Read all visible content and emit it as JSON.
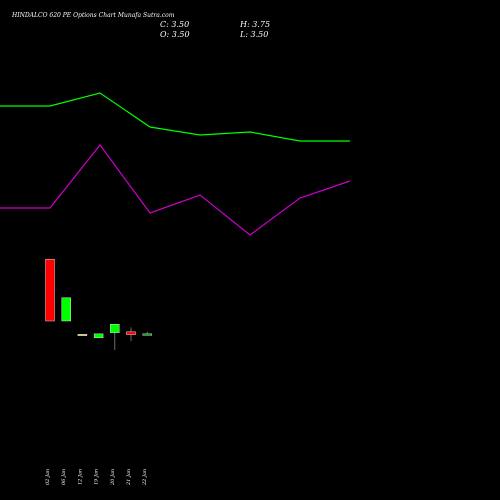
{
  "chart_data": {
    "type": "candlestick",
    "title": "HINDALCO 620 PE Options Chart Munafa Sutra.com",
    "ohlc": {
      "close": "C: 3.50",
      "open": "O: 3.50",
      "high": "H: 3.75",
      "low": "L: 3.50"
    },
    "x_ticks": [
      "02 Jan",
      "06 Jan",
      "12 Jan",
      "19 Jan",
      "20 Jan",
      "21 Jan",
      "22 Jan"
    ],
    "candles": [
      {
        "date": "02 Jan",
        "open": 12.8,
        "high": 12.8,
        "low": 5.1,
        "close": 5.1
      },
      {
        "date": "06 Jan",
        "open": 5.1,
        "high": 8.0,
        "low": 5.1,
        "close": 8.0
      },
      {
        "date": "12 Jan",
        "open": 3.45,
        "high": 3.45,
        "low": 3.45,
        "close": 3.45
      },
      {
        "date": "19 Jan",
        "open": 3.0,
        "high": 3.5,
        "low": 3.0,
        "close": 3.5
      },
      {
        "date": "20 Jan",
        "open": 3.65,
        "high": 4.7,
        "low": 1.5,
        "close": 4.7
      },
      {
        "date": "21 Jan",
        "open": 3.75,
        "high": 4.3,
        "low": 2.6,
        "close": 3.4
      },
      {
        "date": "22 Jan",
        "open": 3.5,
        "high": 3.75,
        "low": 3.5,
        "close": 3.5
      }
    ],
    "up_color": "#00ff00",
    "down_color": "#ff0000",
    "lines": [
      {
        "color": "#00ff00",
        "values": [
          106,
          106,
          93,
          127,
          135,
          132,
          141,
          141
        ]
      },
      {
        "color": "#cc00cc",
        "values": [
          208,
          208,
          145,
          213,
          195,
          235,
          198,
          181
        ]
      }
    ]
  }
}
